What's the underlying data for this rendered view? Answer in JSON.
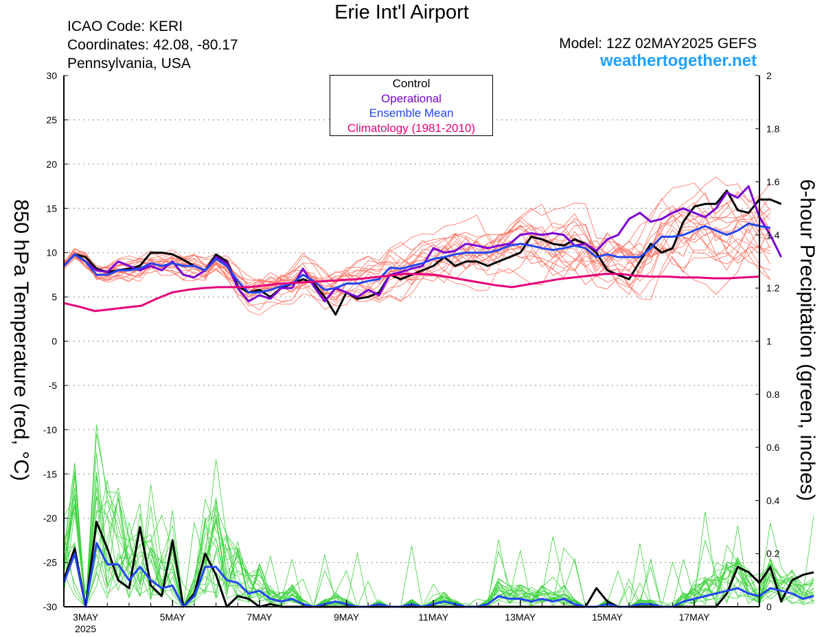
{
  "header": {
    "title": "Erie Int'l Airport",
    "icao": "ICAO Code: KERI",
    "coords": "Coordinates: 42.08, -80.17",
    "region": "Pennsylvania, USA",
    "model": "Model: 12Z 02MAY2025 GEFS",
    "site": "weathertogether.net"
  },
  "legend": {
    "control": "Control",
    "operational": "Operational",
    "mean": "Ensemble Mean",
    "climo": "Climatology (1981-2010)"
  },
  "chart_data": {
    "type": "line",
    "xlabel": "",
    "ylabel": "850 hPa Temperature (red, °C)",
    "ylabel_right": "6-hour Precipitation (green, inches)",
    "x_hours": {
      "start": 0,
      "end": 384,
      "step": 6
    },
    "x_ticks": [
      {
        "hour": 12,
        "label": "3MAY",
        "sub": "2025"
      },
      {
        "hour": 60,
        "label": "5MAY"
      },
      {
        "hour": 108,
        "label": "7MAY"
      },
      {
        "hour": 156,
        "label": "9MAY"
      },
      {
        "hour": 204,
        "label": "11MAY"
      },
      {
        "hour": 252,
        "label": "13MAY"
      },
      {
        "hour": 300,
        "label": "15MAY"
      },
      {
        "hour": 348,
        "label": "17MAY"
      }
    ],
    "ylim": [
      -30,
      30
    ],
    "yticks": [
      -30,
      -25,
      -20,
      -15,
      -10,
      -5,
      0,
      5,
      10,
      15,
      20,
      25,
      30
    ],
    "ylim_right": [
      0,
      2
    ],
    "yticks_right": [
      "0",
      "0.2",
      "0.4",
      "0.6",
      "0.8",
      "1",
      "1.2",
      "1.4",
      "1.6",
      "1.8",
      "2"
    ],
    "grid": true,
    "legend_position": "top-center",
    "colors": {
      "control": "#000000",
      "operational": "#7a00d6",
      "mean": "#2246f0",
      "climo": "#e6007a",
      "members": "#ff6a5a",
      "precip_members": "#3cd23c"
    },
    "series": [
      {
        "name": "Control",
        "color": "#000000",
        "values": [
          8.5,
          9.8,
          9.5,
          8.2,
          7.8,
          8.0,
          8.2,
          8.5,
          10.0,
          10.0,
          9.8,
          9.2,
          8.5,
          8.0,
          9.8,
          9.0,
          6.2,
          5.5,
          5.8,
          5.0,
          6.0,
          6.5,
          7.0,
          6.5,
          5.0,
          3.0,
          5.5,
          4.8,
          5.0,
          5.5,
          7.5,
          7.0,
          7.5,
          8.0,
          8.5,
          9.5,
          8.5,
          9.0,
          9.0,
          8.5,
          9.0,
          9.5,
          10.0,
          11.8,
          11.5,
          11.0,
          10.8,
          11.5,
          11.0,
          10.0,
          8.0,
          7.5,
          7.0,
          9.0,
          11.0,
          10.0,
          10.5,
          13.5,
          15.2,
          15.5,
          15.5,
          17.0,
          14.8,
          14.5,
          16.0,
          16.0,
          15.5
        ]
      },
      {
        "name": "Operational",
        "color": "#7a00d6",
        "values": [
          8.5,
          9.8,
          9.0,
          8.0,
          7.8,
          9.0,
          8.5,
          8.0,
          8.5,
          8.0,
          9.0,
          7.5,
          7.2,
          8.0,
          9.5,
          8.8,
          6.0,
          4.5,
          5.2,
          4.8,
          6.0,
          6.0,
          8.2,
          6.2,
          4.5,
          6.0,
          5.5,
          5.0,
          5.8,
          5.2,
          7.5,
          7.8,
          8.2,
          8.5,
          10.5,
          10.0,
          10.2,
          11.0,
          10.8,
          10.5,
          10.8,
          11.0,
          12.0,
          12.2,
          12.0,
          12.2,
          12.0,
          10.8,
          11.0,
          10.2,
          11.5,
          12.0,
          13.8,
          14.5,
          13.5,
          13.8,
          14.5,
          15.0,
          14.5,
          14.0,
          15.0,
          16.8,
          16.2,
          17.5,
          14.0,
          12.0,
          9.5
        ]
      },
      {
        "name": "Ensemble Mean",
        "color": "#2246f0",
        "values": [
          8.5,
          9.8,
          9.0,
          7.5,
          7.5,
          8.0,
          8.0,
          8.2,
          8.8,
          8.5,
          8.8,
          8.5,
          8.5,
          8.0,
          9.3,
          8.5,
          6.8,
          5.5,
          5.5,
          5.8,
          6.2,
          6.5,
          7.5,
          6.8,
          5.8,
          6.0,
          6.5,
          6.5,
          6.8,
          7.0,
          8.3,
          8.2,
          8.5,
          8.8,
          9.3,
          9.5,
          9.8,
          10.0,
          10.0,
          10.0,
          10.3,
          10.8,
          11.0,
          10.8,
          10.5,
          10.3,
          10.5,
          10.8,
          10.5,
          9.5,
          9.8,
          9.5,
          9.5,
          9.5,
          10.5,
          11.8,
          11.8,
          12.0,
          12.5,
          13.0,
          12.5,
          12.0,
          12.5,
          13.3,
          13.0,
          12.8
        ]
      },
      {
        "name": "Climatology (1981-2010)",
        "color": "#e6007a",
        "values": [
          4.3,
          3.9,
          3.4,
          3.6,
          3.8,
          4.0,
          4.8,
          5.5,
          5.8,
          6.0,
          6.1,
          6.1,
          6.1,
          6.3,
          6.5,
          6.6,
          6.7,
          6.8,
          6.9,
          7.0,
          7.2,
          7.4,
          7.6,
          7.6,
          7.5,
          7.2,
          6.9,
          6.6,
          6.3,
          6.1,
          6.4,
          6.7,
          7.0,
          7.2,
          7.4,
          7.6,
          7.6,
          7.4,
          7.3,
          7.3,
          7.2,
          7.2,
          7.1,
          7.1,
          7.2,
          7.3
        ]
      },
      {
        "name": "Control (precip)",
        "color": "#000000",
        "axis": "right",
        "values": [
          0.1,
          0.22,
          0.0,
          0.32,
          0.22,
          0.1,
          0.07,
          0.3,
          0.08,
          0.04,
          0.25,
          0.0,
          0.05,
          0.2,
          0.12,
          0.0,
          0.04,
          0.03,
          0.0,
          0.01,
          0.0,
          0.0,
          0.0,
          0.0,
          0.0,
          0.0,
          0.0,
          0.0,
          0.0,
          0.0,
          0.0,
          0.0,
          0.0,
          0.0,
          0.0,
          0.0,
          0.0,
          0.0,
          0.0,
          0.0,
          0.0,
          0.0,
          0.0,
          0.0,
          0.0,
          0.0,
          0.0,
          0.0,
          0.0,
          0.07,
          0.02,
          0.0,
          0.0,
          0.0,
          0.0,
          0.0,
          0.0,
          0.0,
          0.0,
          0.0,
          0.0,
          0.05,
          0.15,
          0.13,
          0.09,
          0.15,
          0.02,
          0.1,
          0.12,
          0.13
        ]
      },
      {
        "name": "Ensemble Mean (precip)",
        "color": "#2246f0",
        "axis": "right",
        "values": [
          0.09,
          0.2,
          0.0,
          0.24,
          0.16,
          0.16,
          0.1,
          0.15,
          0.1,
          0.07,
          0.08,
          0.0,
          0.04,
          0.15,
          0.15,
          0.1,
          0.09,
          0.05,
          0.06,
          0.03,
          0.02,
          0.03,
          0.01,
          0.0,
          0.01,
          0.02,
          0.01,
          0.0,
          0.0,
          0.01,
          0.0,
          0.0,
          0.01,
          0.0,
          0.01,
          0.02,
          0.01,
          0.0,
          0.0,
          0.01,
          0.04,
          0.03,
          0.03,
          0.02,
          0.03,
          0.02,
          0.03,
          0.01,
          0.0,
          0.0,
          0.01,
          0.0,
          0.0,
          0.01,
          0.01,
          0.0,
          0.0,
          0.02,
          0.03,
          0.04,
          0.05,
          0.06,
          0.07,
          0.05,
          0.04,
          0.07,
          0.06,
          0.05,
          0.03,
          0.04
        ]
      }
    ]
  }
}
